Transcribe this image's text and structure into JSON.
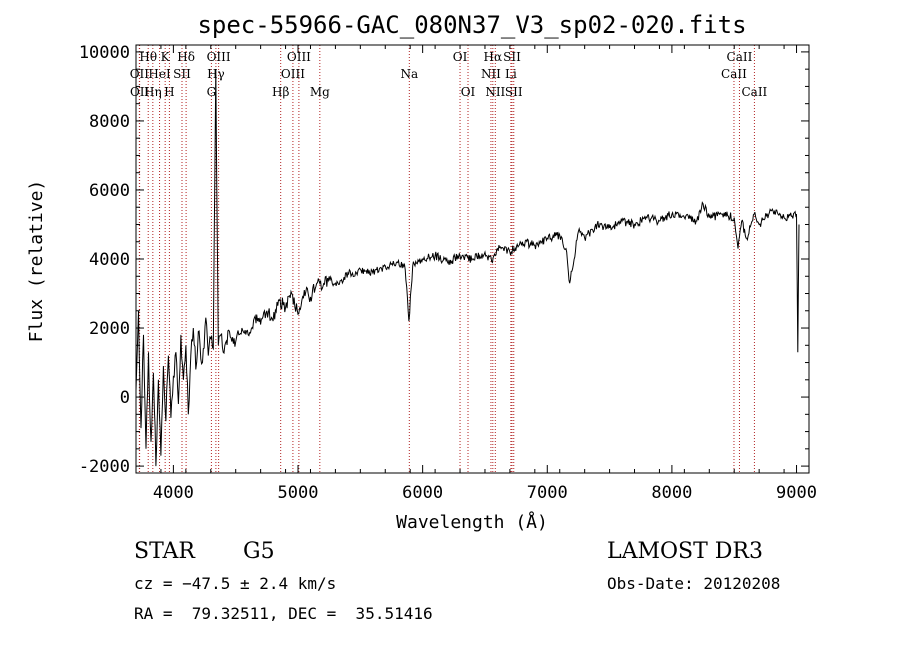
{
  "chart_data": {
    "type": "line",
    "title": "spec-55966-GAC_080N37_V3_sp02-020.fits",
    "xlabel": "Wavelength (Å)",
    "ylabel": "Flux (relative)",
    "xlim": [
      3700,
      9100
    ],
    "ylim": [
      -2200,
      10200
    ],
    "x_ticks": [
      4000,
      5000,
      6000,
      7000,
      8000,
      9000
    ],
    "y_ticks": [
      -2000,
      0,
      2000,
      4000,
      6000,
      8000,
      10000
    ],
    "series": [
      {
        "name": "flux",
        "x": [
          3700,
          3720,
          3740,
          3760,
          3780,
          3800,
          3820,
          3840,
          3860,
          3880,
          3900,
          3920,
          3940,
          3960,
          3980,
          4000,
          4020,
          4040,
          4060,
          4080,
          4100,
          4120,
          4140,
          4160,
          4180,
          4200,
          4220,
          4240,
          4260,
          4280,
          4300,
          4320,
          4340,
          4360,
          4380,
          4400,
          4450,
          4500,
          4550,
          4600,
          4650,
          4700,
          4750,
          4800,
          4850,
          4900,
          4950,
          5000,
          5050,
          5100,
          5150,
          5200,
          5250,
          5300,
          5350,
          5400,
          5450,
          5500,
          5600,
          5700,
          5800,
          5860,
          5890,
          5920,
          6000,
          6100,
          6200,
          6300,
          6400,
          6500,
          6560,
          6600,
          6700,
          6800,
          6900,
          7000,
          7100,
          7150,
          7180,
          7250,
          7300,
          7400,
          7500,
          7600,
          7700,
          7800,
          7900,
          8000,
          8100,
          8200,
          8250,
          8300,
          8400,
          8500,
          8530,
          8560,
          8600,
          8660,
          8700,
          8800,
          8900,
          9000,
          9010,
          9020
        ],
        "values": [
          200,
          2500,
          -900,
          1800,
          -1500,
          1300,
          -1300,
          700,
          -2000,
          500,
          -1700,
          900,
          -700,
          1200,
          -600,
          600,
          1300,
          -200,
          1800,
          500,
          1500,
          -500,
          1200,
          2000,
          800,
          1900,
          1100,
          1400,
          2300,
          1200,
          1700,
          1400,
          9500,
          1500,
          1800,
          1300,
          1900,
          1600,
          2000,
          1800,
          2300,
          2100,
          2500,
          2200,
          2800,
          2600,
          3000,
          2400,
          3100,
          2900,
          3300,
          3200,
          3500,
          3300,
          3400,
          3600,
          3500,
          3700,
          3600,
          3800,
          3900,
          3700,
          2200,
          3800,
          4000,
          4100,
          3900,
          4100,
          4000,
          4200,
          3900,
          4300,
          4200,
          4500,
          4400,
          4600,
          4700,
          4300,
          3300,
          4800,
          4600,
          5000,
          4900,
          5100,
          5000,
          5200,
          5100,
          5300,
          5200,
          5100,
          5600,
          5200,
          5300,
          5200,
          4300,
          5100,
          4600,
          5300,
          5000,
          5400,
          5200,
          5300,
          1300,
          5000
        ]
      }
    ],
    "spectral_lines": [
      {
        "name": "Hθ",
        "wl": 3798,
        "row": 1
      },
      {
        "name": "OII",
        "wl": 3727,
        "row": 2
      },
      {
        "name": "OII",
        "wl": 3729,
        "row": 3
      },
      {
        "name": "HeI",
        "wl": 3889,
        "row": 2
      },
      {
        "name": "Hη",
        "wl": 3835,
        "row": 3
      },
      {
        "name": "K",
        "wl": 3934,
        "row": 1
      },
      {
        "name": "H",
        "wl": 3968,
        "row": 3
      },
      {
        "name": "SII",
        "wl": 4069,
        "row": 2
      },
      {
        "name": "Hδ",
        "wl": 4102,
        "row": 1
      },
      {
        "name": "OIII",
        "wl": 4363,
        "row": 1
      },
      {
        "name": "Hγ",
        "wl": 4341,
        "row": 2
      },
      {
        "name": "G",
        "wl": 4305,
        "row": 3
      },
      {
        "name": "Hβ",
        "wl": 4861,
        "row": 3
      },
      {
        "name": "OIII",
        "wl": 5007,
        "row": 1
      },
      {
        "name": "OIII",
        "wl": 4959,
        "row": 2
      },
      {
        "name": "Mg",
        "wl": 5175,
        "row": 3
      },
      {
        "name": "Na",
        "wl": 5893,
        "row": 2
      },
      {
        "name": "OI",
        "wl": 6300,
        "row": 1
      },
      {
        "name": "OI",
        "wl": 6364,
        "row": 3
      },
      {
        "name": "Hα",
        "wl": 6563,
        "row": 1
      },
      {
        "name": "NII",
        "wl": 6548,
        "row": 2
      },
      {
        "name": "NII",
        "wl": 6583,
        "row": 3
      },
      {
        "name": "SII",
        "wl": 6717,
        "row": 1
      },
      {
        "name": "Li",
        "wl": 6708,
        "row": 2
      },
      {
        "name": "SII",
        "wl": 6731,
        "row": 3
      },
      {
        "name": "CaII",
        "wl": 8542,
        "row": 1
      },
      {
        "name": "CaII",
        "wl": 8498,
        "row": 2
      },
      {
        "name": "CaII",
        "wl": 8662,
        "row": 3
      }
    ]
  },
  "info": {
    "object_class": "STAR",
    "subclass": "G5",
    "survey": "LAMOST DR3",
    "redshift_line": "cz = −47.5 ± 2.4 km/s",
    "obs_date": "Obs-Date: 20120208",
    "coords": "RA =  79.32511, DEC =  35.51416"
  },
  "colors": {
    "line_marker": "#b22222",
    "axis": "#000000",
    "spectrum": "#000000"
  }
}
